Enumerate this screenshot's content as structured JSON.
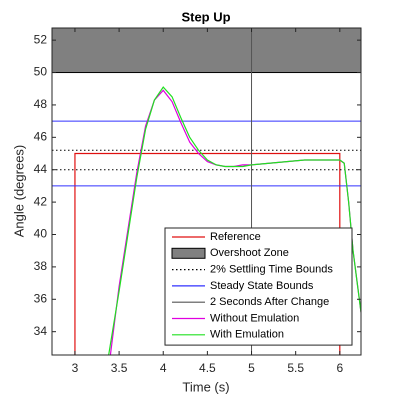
{
  "chart_data": {
    "type": "line",
    "title": "Step Up",
    "x_label": "Time (s)",
    "y_label": "Angle (degrees)",
    "xlim": [
      2.74,
      6.24
    ],
    "ylim": [
      32.56,
      52.75
    ],
    "xticks": [
      3,
      3.5,
      4,
      4.5,
      5,
      5.5,
      6
    ],
    "yticks": [
      34,
      36,
      38,
      40,
      42,
      44,
      46,
      48,
      50,
      52
    ],
    "legend": "lower-right",
    "series": [
      {
        "name": "Reference",
        "color": "#e01010",
        "style": "solid",
        "x": [
          3,
          3,
          6,
          6
        ],
        "values": [
          30,
          45,
          45,
          30
        ]
      },
      {
        "name": "Overshoot Zone",
        "color": "#808080",
        "band": [
          50,
          55
        ]
      },
      {
        "name": "2% Settling Time Bounds",
        "color": "#000000",
        "style": "dotted",
        "hlines": [
          45.2,
          44.0
        ]
      },
      {
        "name": "Steady State Bounds",
        "color": "#3030ff",
        "style": "solid",
        "hlines": [
          47,
          43
        ]
      },
      {
        "name": "2 Seconds After Change",
        "color": "#555555",
        "style": "solid",
        "vlines": [
          5
        ]
      },
      {
        "name": "Without Emulation",
        "color": "#e000e0",
        "style": "solid",
        "x": [
          3.4,
          3.5,
          3.6,
          3.7,
          3.8,
          3.9,
          4.0,
          4.1,
          4.2,
          4.3,
          4.4,
          4.5,
          4.6,
          4.7,
          4.8,
          4.9,
          5.0,
          5.2,
          5.4,
          5.6,
          5.8,
          6.0,
          6.05,
          6.1,
          6.15,
          6.24
        ],
        "values": [
          32.5,
          36.8,
          40.3,
          43.8,
          46.7,
          48.3,
          48.9,
          48.2,
          46.9,
          45.7,
          45.0,
          44.5,
          44.3,
          44.2,
          44.2,
          44.3,
          44.3,
          44.4,
          44.5,
          44.6,
          44.6,
          44.6,
          44.4,
          42.0,
          39.0,
          35.2
        ]
      },
      {
        "name": "With Emulation",
        "color": "#20e020",
        "style": "solid",
        "x": [
          3.38,
          3.5,
          3.6,
          3.7,
          3.8,
          3.9,
          4.0,
          4.1,
          4.2,
          4.3,
          4.4,
          4.5,
          4.6,
          4.7,
          4.8,
          4.9,
          5.0,
          5.2,
          5.4,
          5.6,
          5.8,
          6.0,
          6.05,
          6.1,
          6.15,
          6.24
        ],
        "values": [
          32.5,
          36.5,
          40.0,
          43.5,
          46.5,
          48.3,
          49.1,
          48.5,
          47.2,
          46.0,
          45.2,
          44.6,
          44.3,
          44.2,
          44.2,
          44.2,
          44.3,
          44.4,
          44.5,
          44.6,
          44.6,
          44.6,
          44.4,
          42.0,
          39.0,
          35.2
        ]
      }
    ]
  }
}
